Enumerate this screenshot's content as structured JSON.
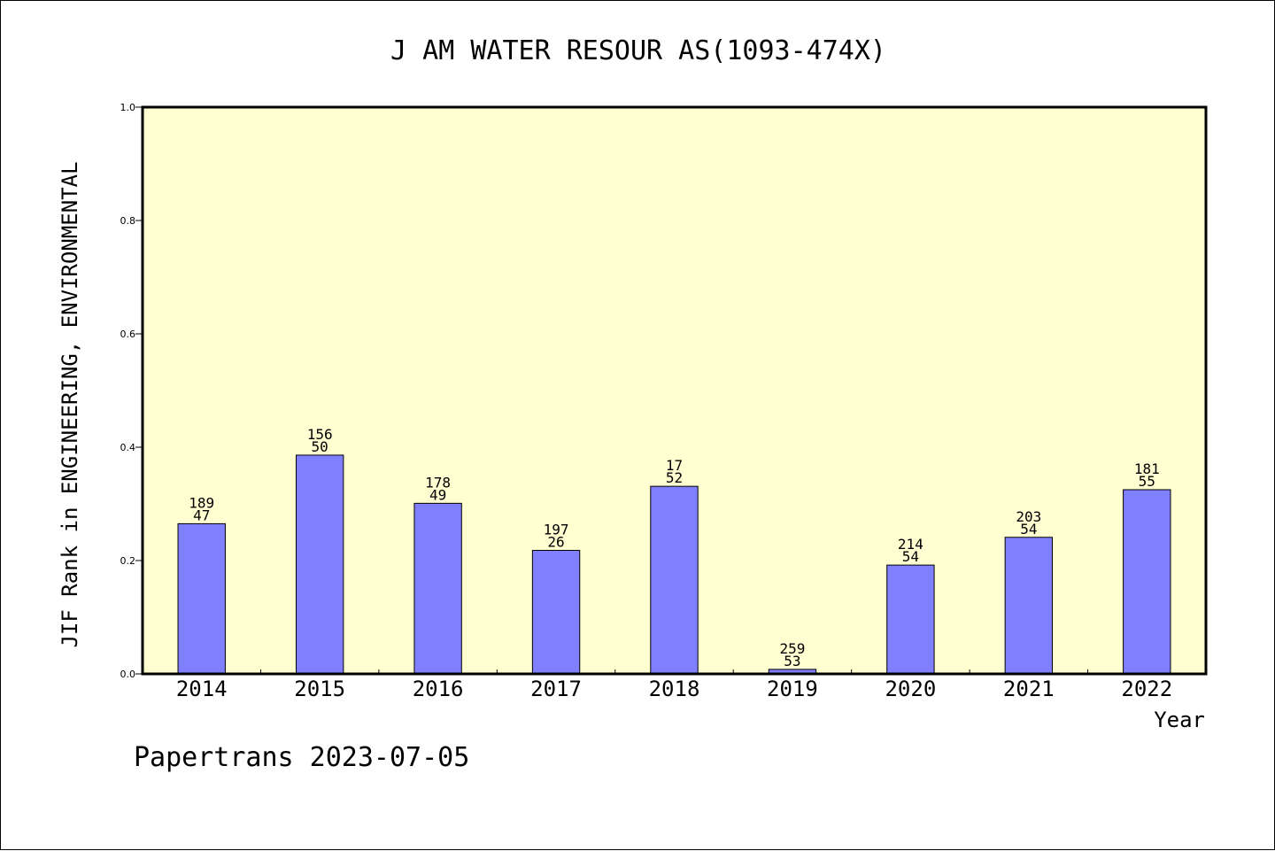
{
  "chart_data": {
    "type": "bar",
    "title": "J AM WATER RESOUR AS(1093-474X)",
    "xlabel": "Year",
    "ylabel": "JIF Rank in ENGINEERING, ENVIRONMENTAL",
    "ylim": [
      0.0,
      1.0
    ],
    "yticks": [
      "0.0",
      "0.2",
      "0.4",
      "0.6",
      "0.8",
      "1.0"
    ],
    "categories": [
      "2014",
      "2015",
      "2016",
      "2017",
      "2018",
      "2019",
      "2020",
      "2021",
      "2022"
    ],
    "values": [
      0.265,
      0.386,
      0.301,
      0.218,
      0.331,
      0.008,
      0.192,
      0.241,
      0.325
    ],
    "bar_labels": [
      [
        "189",
        "47"
      ],
      [
        "156",
        "50"
      ],
      [
        "178",
        "49"
      ],
      [
        "197",
        "26"
      ],
      [
        "17",
        "52"
      ],
      [
        "259",
        "53"
      ],
      [
        "214",
        "54"
      ],
      [
        "203",
        "54"
      ],
      [
        "181",
        "55"
      ]
    ],
    "grid": false,
    "legend": "none",
    "colors": {
      "bar_fill": "#8080ff",
      "plot_background": "#ffffd2",
      "axis": "#000000"
    }
  },
  "footer": "Papertrans 2023-07-05"
}
